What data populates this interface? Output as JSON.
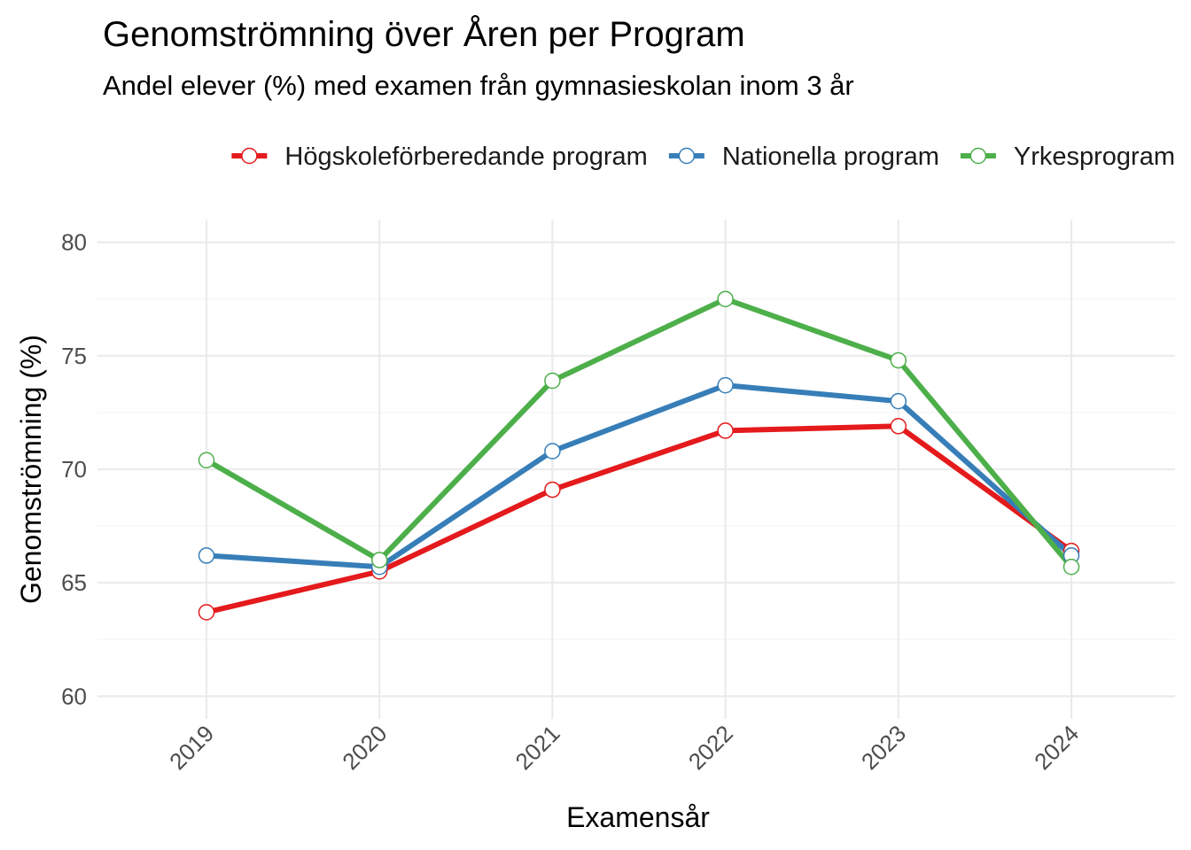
{
  "chart_data": {
    "type": "line",
    "title": "Genomströmning över Åren per Program",
    "subtitle": "Andel elever (%) med examen från gymnasieskolan inom 3 år",
    "xlabel": "Examensår",
    "ylabel": "Genomströmning (%)",
    "x": [
      "2019",
      "2020",
      "2021",
      "2022",
      "2023",
      "2024"
    ],
    "yticks": [
      60,
      65,
      70,
      75,
      80
    ],
    "ylim": [
      59,
      81
    ],
    "grid": true,
    "legend_position": "top",
    "series": [
      {
        "name": "Högskoleförberedande program",
        "color": "#e41a1c",
        "values": [
          63.7,
          65.5,
          69.1,
          71.7,
          71.9,
          66.4
        ]
      },
      {
        "name": "Nationella program",
        "color": "#377eb8",
        "values": [
          66.2,
          65.7,
          70.8,
          73.7,
          73.0,
          66.2
        ]
      },
      {
        "name": "Yrkesprogram",
        "color": "#4daf4a",
        "values": [
          70.4,
          66.0,
          73.9,
          77.5,
          74.8,
          65.7
        ]
      }
    ]
  }
}
